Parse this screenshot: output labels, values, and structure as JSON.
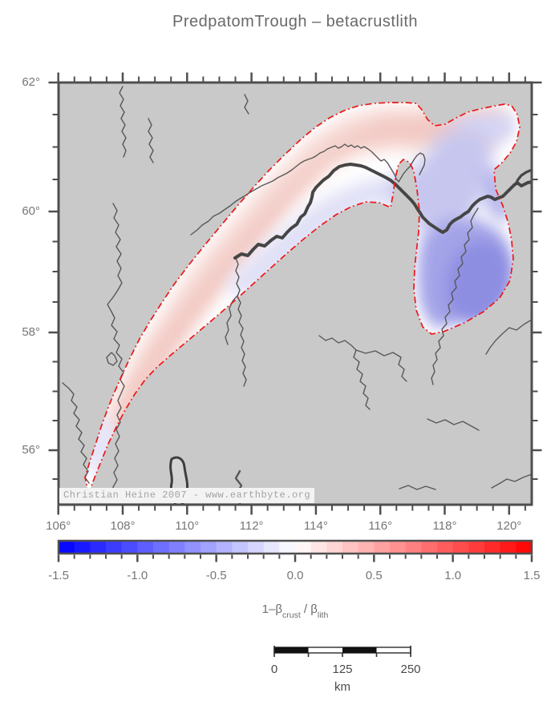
{
  "title": "PredpatomTrough – betacrustlith",
  "watermark": "Christian Heine 2007 - www.earthbyte.org",
  "axes": {
    "lon": {
      "tick_labels": [
        {
          "text": "106°",
          "deg": 106
        },
        {
          "text": "108°",
          "deg": 108
        },
        {
          "text": "110°",
          "deg": 110
        },
        {
          "text": "112°",
          "deg": 112
        },
        {
          "text": "114°",
          "deg": 114
        },
        {
          "text": "116°",
          "deg": 116
        },
        {
          "text": "118°",
          "deg": 118
        },
        {
          "text": "120°",
          "deg": 120
        }
      ],
      "minor_step_deg": 0.5
    },
    "lat": {
      "tick_labels": [
        {
          "text": "62°",
          "deg": 62
        },
        {
          "text": "60°",
          "deg": 60
        },
        {
          "text": "58°",
          "deg": 58
        },
        {
          "text": "56°",
          "deg": 56
        }
      ],
      "minor_step_deg": 0.5
    }
  },
  "colorbar": {
    "min": -1.5,
    "max": 1.5,
    "cell_step": 0.1,
    "tick_labels": [
      {
        "text": "-1.5",
        "v": -1.5
      },
      {
        "text": "-1.0",
        "v": -1.0
      },
      {
        "text": "-0.5",
        "v": -0.5
      },
      {
        "text": "0.0",
        "v": 0.0
      },
      {
        "text": "0.5",
        "v": 0.5
      },
      {
        "text": "1.0",
        "v": 1.0
      },
      {
        "text": "1.5",
        "v": 1.5
      }
    ],
    "label": {
      "pre": "1–β",
      "sub1": "crust",
      "mid": " / β",
      "sub2": "lith"
    },
    "end_colors": {
      "neg": "#0000ff",
      "zero": "#ffffff",
      "pos": "#ff0000"
    }
  },
  "scalebar": {
    "tick_labels": [
      {
        "text": "0",
        "km": 0
      },
      {
        "text": "125",
        "km": 125
      },
      {
        "text": "250",
        "km": 250
      }
    ],
    "unit": "km",
    "segments": 4,
    "total_km": 250
  },
  "colors": {
    "land": "#c9c9c9",
    "frame": "#4f4f4f",
    "trough_boundary": "#ee1616",
    "river": "#585858",
    "river_major": "#454545",
    "text": "#767676",
    "text_dark": "#4a4a4a"
  }
}
